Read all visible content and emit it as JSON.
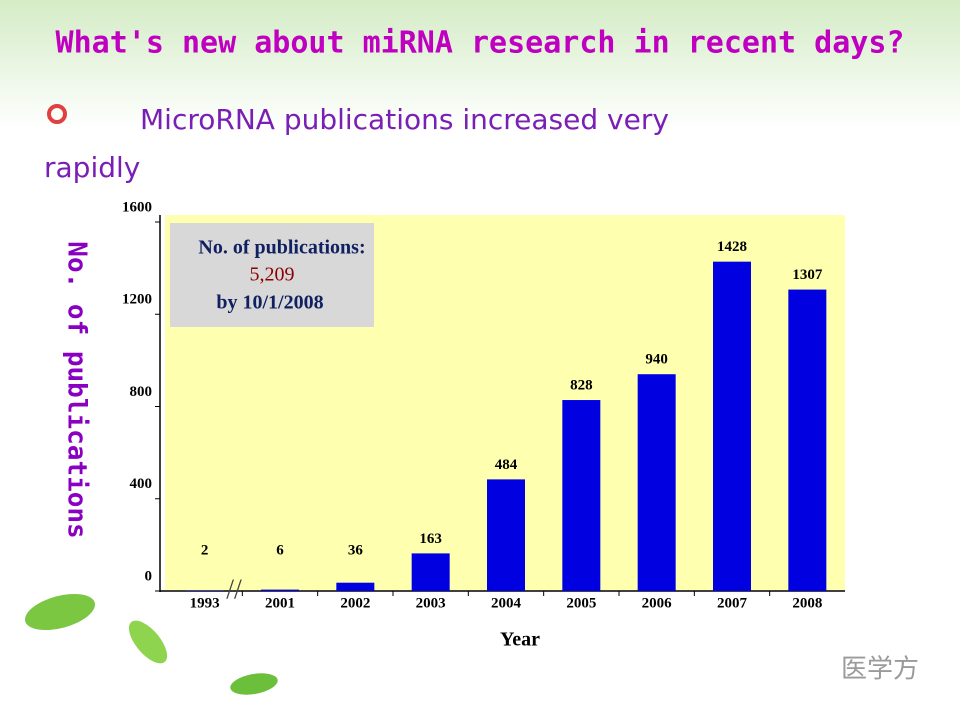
{
  "chart_data": {
    "type": "bar",
    "title": "What's new about miRNA research in recent days?",
    "subtitle": "MicroRNA publications increased very rapidly",
    "annotation": {
      "heading": "No. of publications:",
      "value": "5,209",
      "date": "by 10/1/2008"
    },
    "categories": [
      "1993",
      "2001",
      "2002",
      "2003",
      "2004",
      "2005",
      "2006",
      "2007",
      "2008"
    ],
    "values": [
      2,
      6,
      36,
      163,
      484,
      828,
      940,
      1428,
      1307
    ],
    "color": "#0000e0",
    "ylim": [
      0,
      1600
    ],
    "yticks": [
      0,
      400,
      800,
      1200,
      1600
    ],
    "xlabel": "Year",
    "ylabel": "No. of publications",
    "watermark": "医学方"
  }
}
